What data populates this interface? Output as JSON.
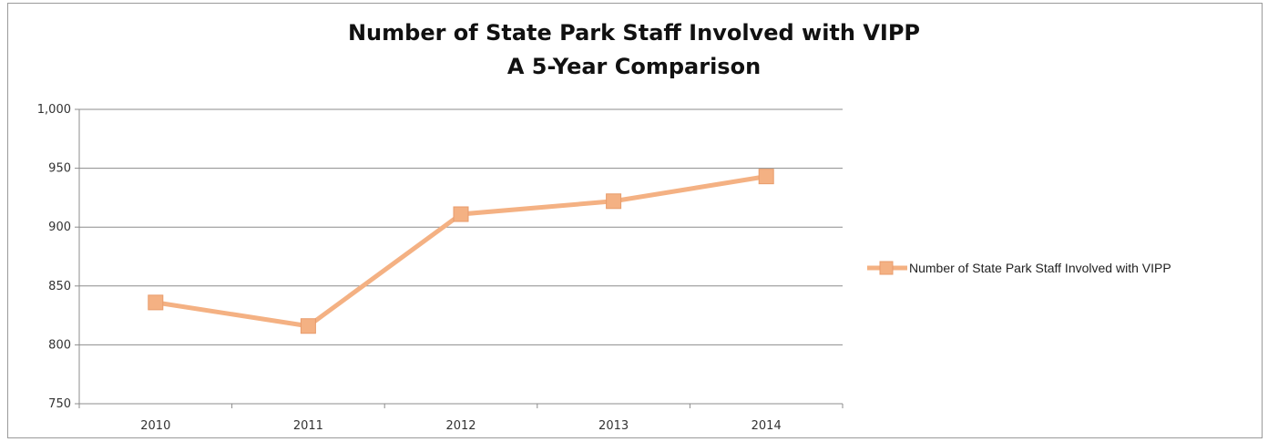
{
  "chart_data": {
    "type": "line",
    "title": "Number of State Park Staff Involved with VIPP",
    "subtitle": "A 5-Year Comparison",
    "categories": [
      "2010",
      "2011",
      "2012",
      "2013",
      "2014"
    ],
    "series": [
      {
        "name": "Number of State Park Staff Involved with VIPP",
        "values": [
          836,
          816,
          911,
          922,
          943
        ],
        "color": "#f4b183"
      }
    ],
    "ylim": [
      750,
      1000
    ],
    "y_ticks": [
      750,
      800,
      850,
      900,
      950,
      1000
    ],
    "y_tick_labels": [
      "750",
      "800",
      "850",
      "900",
      "950",
      "1,000"
    ],
    "grid": true,
    "legend_position": "right",
    "marker": "square"
  }
}
